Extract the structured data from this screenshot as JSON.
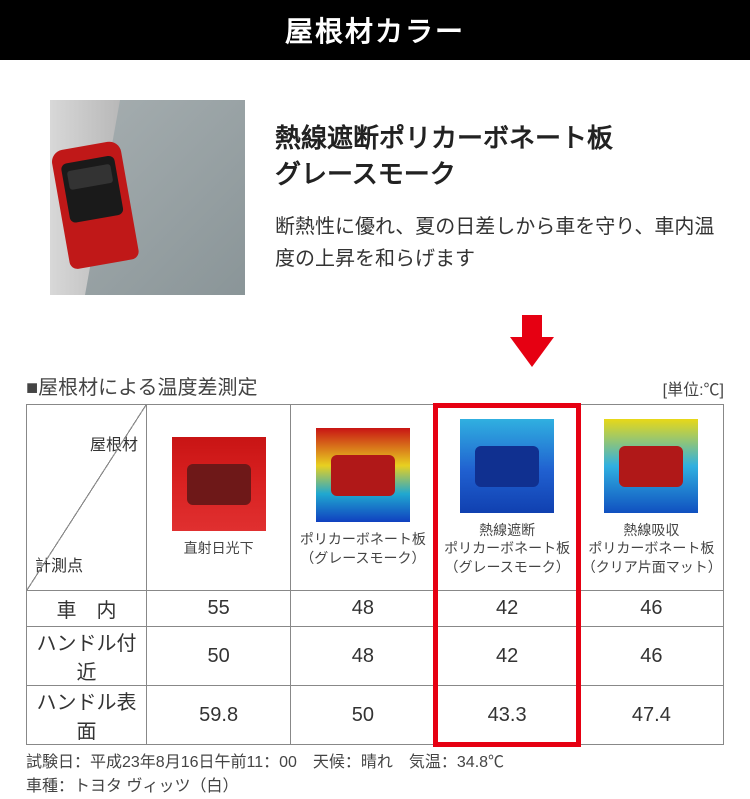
{
  "header": {
    "title": "屋根材カラー"
  },
  "intro": {
    "title_line1": "熱線遮断ポリカーボネート板",
    "title_line2": "グレースモーク",
    "description": "断熱性に優れ、夏の日差しから車を守り、車内温度の上昇を和らげます"
  },
  "chart": {
    "title": "■屋根材による温度差測定",
    "unit": "[単位:℃]",
    "diag_top": "屋根材",
    "diag_bottom": "計測点",
    "highlight_column_index": 3,
    "highlight_color": "#e60012",
    "columns": [
      {
        "label": "直射日光下",
        "thermal_bg": "linear-gradient(#c81414 0%, #d82020 45%, #e03030 100%)",
        "car_color": "#6e1818"
      },
      {
        "label": "ポリカーボネート板\n（グレースモーク）",
        "thermal_bg": "linear-gradient(#c81414 0%, #e8d020 40%, #20a8d0 70%, #1040c0 100%)",
        "car_color": "#b01818"
      },
      {
        "label": "熱線遮断\nポリカーボネート板\n（グレースモーク）",
        "thermal_bg": "linear-gradient(#30b0e0 0%, #2060d0 55%, #1040b0 100%)",
        "car_color": "#103090"
      },
      {
        "label": "熱線吸収\nポリカーボネート板\n（クリア片面マット）",
        "thermal_bg": "linear-gradient(#e8d818 0%, #30b0e0 50%, #1050c0 100%)",
        "car_color": "#b01818"
      }
    ],
    "rows": [
      {
        "label": "車　内",
        "values": [
          "55",
          "48",
          "42",
          "46"
        ]
      },
      {
        "label": "ハンドル付近",
        "values": [
          "50",
          "48",
          "42",
          "46"
        ]
      },
      {
        "label": "ハンドル表面",
        "values": [
          "59.8",
          "50",
          "43.3",
          "47.4"
        ]
      }
    ],
    "footer_line1": "試験日：平成23年8月16日午前11：00　天候：晴れ　気温：34.8℃",
    "footer_line2": "車種：トヨタ ヴィッツ（白）"
  },
  "colors": {
    "highlight": "#e60012",
    "header_bg": "#000000",
    "header_text": "#ffffff"
  }
}
